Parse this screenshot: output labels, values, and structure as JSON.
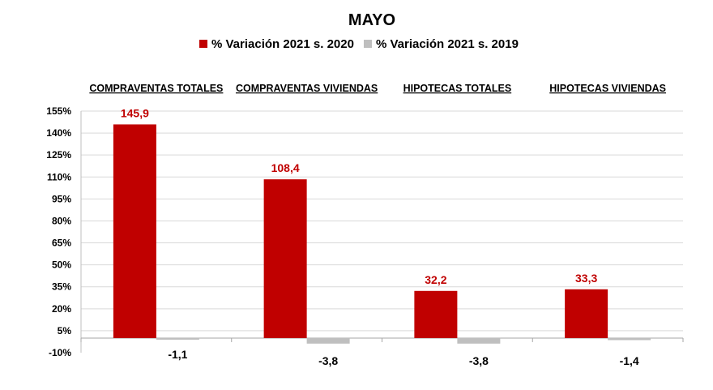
{
  "chart_data": {
    "type": "bar",
    "title": "MAYO",
    "categories": [
      "COMPRAVENTAS TOTALES",
      "COMPRAVENTAS VIVIENDAS",
      "HIPOTECAS TOTALES",
      "HIPOTECAS VIVIENDAS"
    ],
    "series": [
      {
        "name": "% Variación 2021 s. 2020",
        "color": "#c00000",
        "label_color": "#c00000",
        "values": [
          145.9,
          108.4,
          32.2,
          33.3
        ],
        "labels": [
          "145,9",
          "108,4",
          "32,2",
          "33,3"
        ]
      },
      {
        "name": "% Variación 2021 s. 2019",
        "color": "#bfbfbf",
        "label_color": "#000000",
        "values": [
          -1.1,
          -3.8,
          -3.8,
          -1.4
        ],
        "labels": [
          "-1,1",
          "-3,8",
          "-3,8",
          "-1,4"
        ]
      }
    ],
    "yticks": [
      -10,
      5,
      20,
      35,
      50,
      65,
      80,
      95,
      110,
      125,
      140,
      155
    ],
    "ytick_labels": [
      "-10%",
      "5%",
      "20%",
      "35%",
      "50%",
      "65%",
      "80%",
      "95%",
      "110%",
      "125%",
      "140%",
      "155%"
    ],
    "ylim": [
      -10,
      155
    ],
    "grid": true,
    "legend_position": "top"
  }
}
